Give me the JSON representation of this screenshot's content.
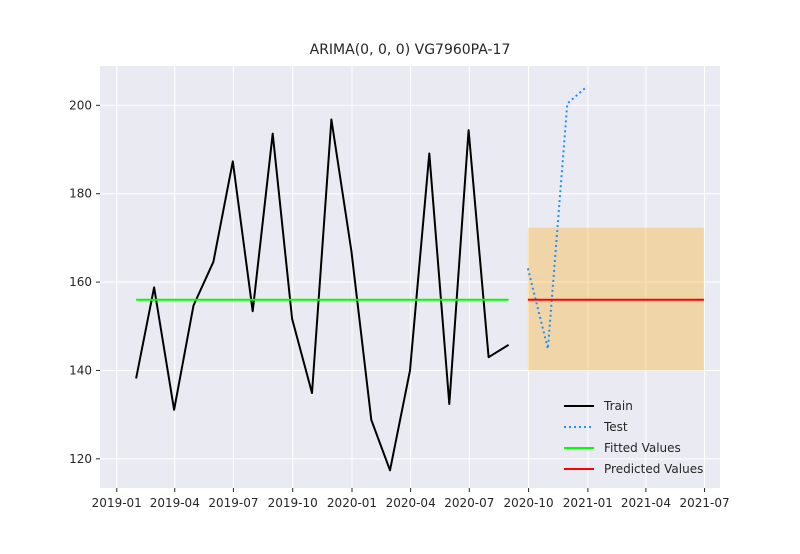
{
  "chart_data": {
    "type": "line",
    "title": "ARIMA(0, 0, 0) VG7960PA-17",
    "xlabel": "",
    "ylabel": "",
    "x_range": [
      "2018-12-06",
      "2021-07-25"
    ],
    "ylim": [
      113.4,
      208.9
    ],
    "x_ticks": [
      "2019-01",
      "2019-04",
      "2019-07",
      "2019-10",
      "2020-01",
      "2020-04",
      "2020-07",
      "2020-10",
      "2021-01",
      "2021-04",
      "2021-07"
    ],
    "y_ticks": [
      120,
      140,
      160,
      180,
      200
    ],
    "grid": true,
    "legend_position": "lower-right",
    "background_color": "#eaeaf2",
    "series": [
      {
        "name": "Train",
        "style": "solid",
        "color": "#000000",
        "x": [
          "2019-01-31",
          "2019-02-28",
          "2019-03-31",
          "2019-04-30",
          "2019-05-31",
          "2019-06-30",
          "2019-07-31",
          "2019-08-31",
          "2019-09-30",
          "2019-10-31",
          "2019-11-30",
          "2019-12-31",
          "2020-01-31",
          "2020-02-29",
          "2020-03-31",
          "2020-04-30",
          "2020-05-31",
          "2020-06-30",
          "2020-07-31",
          "2020-08-31"
        ],
        "y": [
          138.2,
          158.8,
          131.1,
          154.7,
          164.6,
          187.3,
          153.4,
          193.6,
          151.7,
          134.9,
          196.8,
          167.0,
          128.8,
          117.4,
          140.0,
          189.1,
          132.4,
          194.4,
          143.0,
          145.8
        ]
      },
      {
        "name": "Test",
        "style": "dotted",
        "color": "#1e90ff",
        "x": [
          "2020-09-30",
          "2020-10-31",
          "2020-11-30",
          "2020-12-31"
        ],
        "y": [
          163.1,
          144.9,
          200.4,
          204.3
        ]
      },
      {
        "name": "Fitted Values",
        "style": "solid",
        "color": "#00ff00",
        "x": [
          "2019-01-31",
          "2020-08-31"
        ],
        "y": [
          156.0,
          156.0
        ]
      },
      {
        "name": "Predicted Values",
        "style": "solid",
        "color": "#ff0000",
        "x": [
          "2020-09-30",
          "2021-06-30"
        ],
        "y": [
          156.0,
          156.0
        ]
      }
    ],
    "confidence_band": {
      "x": [
        "2020-09-30",
        "2021-06-30"
      ],
      "lower": 140.0,
      "upper": 172.3,
      "color": "#ffa500"
    }
  }
}
